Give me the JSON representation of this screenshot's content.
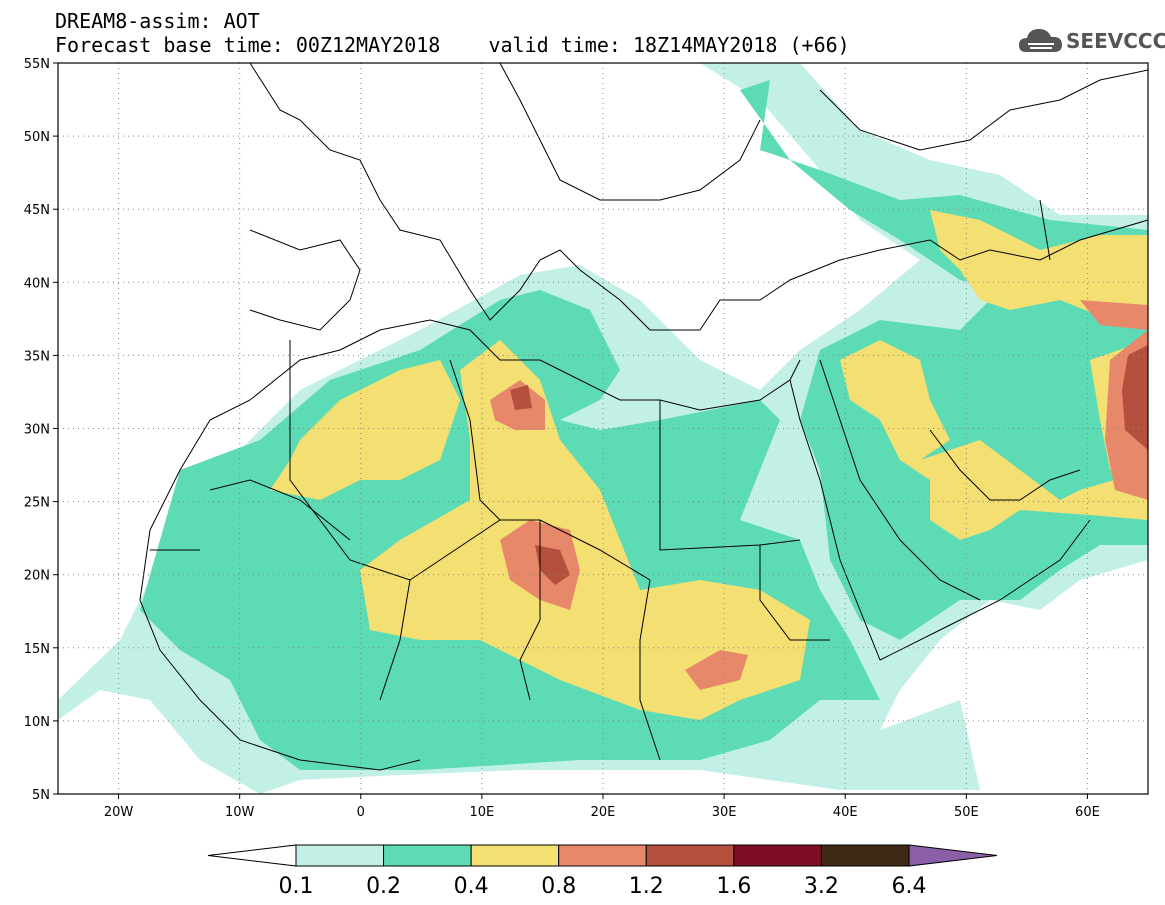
{
  "header": {
    "line1": "DREAM8-assim: AOT",
    "line2": "Forecast base time: 00Z12MAY2018    valid time: 18Z14MAY2018 (+66)"
  },
  "logo": {
    "text": "SEEVCCC",
    "icon": "cloud-icon"
  },
  "map": {
    "projection": "equirectangular",
    "lon_range": [
      -25,
      65
    ],
    "lat_range": [
      5,
      55
    ],
    "lon_ticks": [
      {
        "label": "20W",
        "lon": -20
      },
      {
        "label": "10W",
        "lon": -10
      },
      {
        "label": "0",
        "lon": 0
      },
      {
        "label": "10E",
        "lon": 10
      },
      {
        "label": "20E",
        "lon": 20
      },
      {
        "label": "30E",
        "lon": 30
      },
      {
        "label": "40E",
        "lon": 40
      },
      {
        "label": "50E",
        "lon": 50
      },
      {
        "label": "60E",
        "lon": 60
      }
    ],
    "lat_ticks": [
      {
        "label": "55N",
        "lat": 55
      },
      {
        "label": "50N",
        "lat": 50
      },
      {
        "label": "45N",
        "lat": 45
      },
      {
        "label": "40N",
        "lat": 40
      },
      {
        "label": "35N",
        "lat": 35
      },
      {
        "label": "30N",
        "lat": 30
      },
      {
        "label": "25N",
        "lat": 25
      },
      {
        "label": "20N",
        "lat": 20
      },
      {
        "label": "15N",
        "lat": 15
      },
      {
        "label": "10N",
        "lat": 10
      },
      {
        "label": "5N",
        "lat": 5
      }
    ],
    "grid": "dotted",
    "colors": {
      "c01": "#c3f0e6",
      "c02": "#5ddbb4",
      "c04": "#f4df72",
      "c08": "#e8886a",
      "c12": "#b6503e",
      "c16": "#7e0d26",
      "c32": "#3d2a15",
      "c64": "#8a5fa8"
    }
  },
  "colorbar": {
    "labels": [
      "0.1",
      "0.2",
      "0.4",
      "0.8",
      "1.2",
      "1.6",
      "3.2",
      "6.4"
    ],
    "colors": [
      "#ffffff",
      "#c3f0e6",
      "#5ddbb4",
      "#f4df72",
      "#e8886a",
      "#b6503e",
      "#7e0d26",
      "#3d2a15",
      "#8a5fa8"
    ]
  }
}
